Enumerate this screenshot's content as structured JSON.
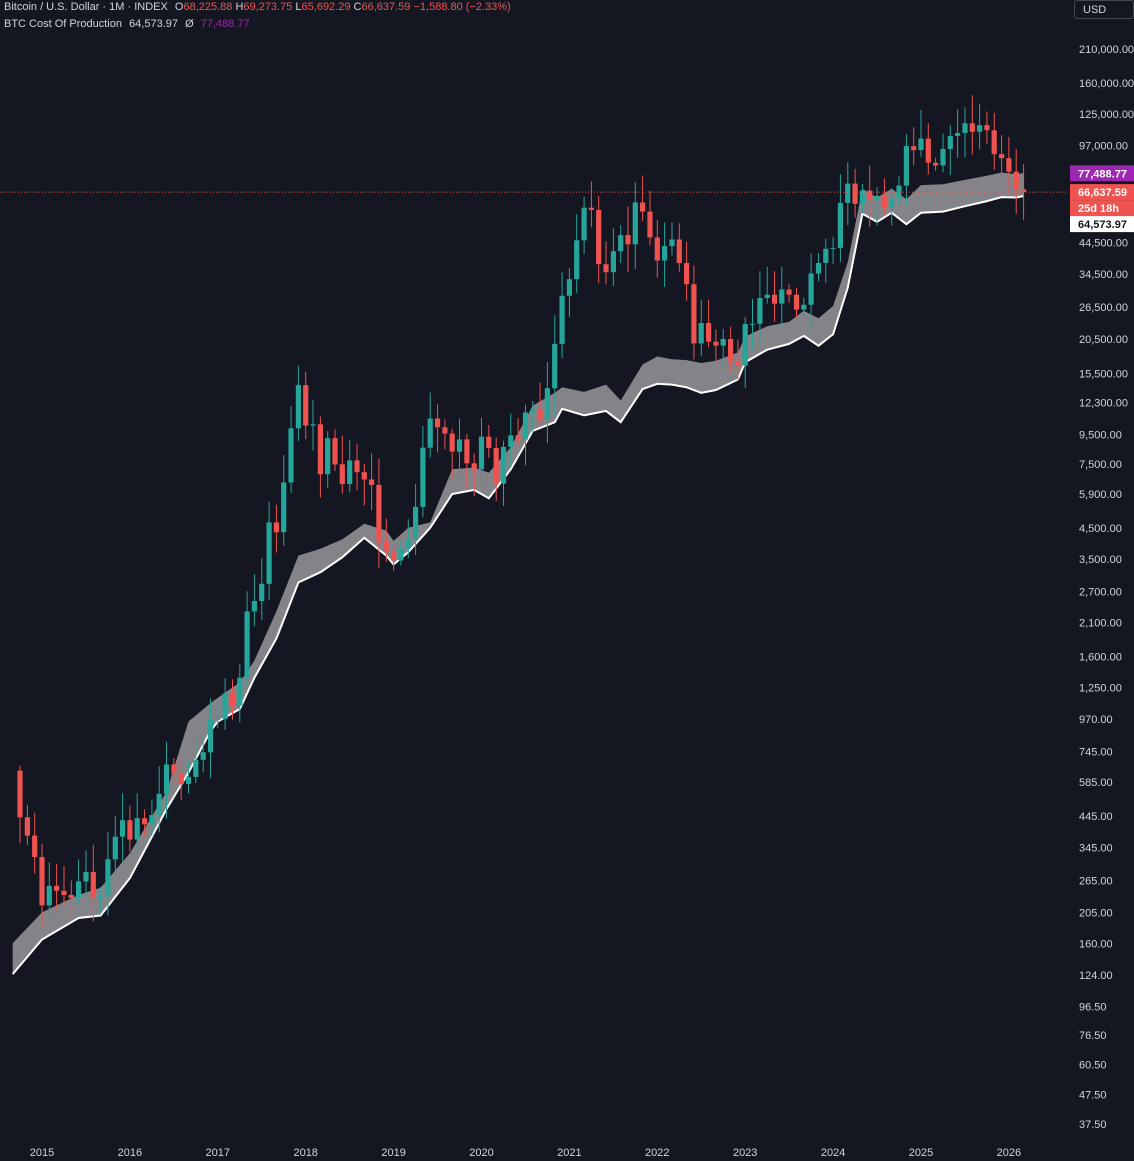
{
  "legend": {
    "title": "Bitcoin / U.S. Dollar · 1M · INDEX",
    "o_label": "O",
    "o": "68,225.88",
    "h_label": "H",
    "h": "69,273.75",
    "l_label": "L",
    "l": "65,692.29",
    "c_label": "C",
    "c": "66,637.59",
    "change": "−1,588.80 (−2.33%)",
    "indicator_name": "BTC Cost Of Production",
    "indicator_v1": "64,573.97",
    "indicator_sym": "Ø",
    "indicator_v2": "77,488.77"
  },
  "currency_button": "USD",
  "colors": {
    "background": "#141621",
    "up": "#26a69a",
    "down": "#ef5350",
    "band_fill": "#8a8a8e",
    "band_line": "#ffffff",
    "purple": "#9c27b0"
  },
  "chart_data": {
    "type": "candlestick",
    "scale": "log",
    "ylim": [
      33,
      230000
    ],
    "y_ticks": [
      "210,000.00",
      "160,000.00",
      "125,000.00",
      "97,000.00",
      "44,500.00",
      "34,500.00",
      "26,500.00",
      "20,500.00",
      "15,500.00",
      "12,300.00",
      "9,500.00",
      "7,500.00",
      "5,900.00",
      "4,500.00",
      "3,500.00",
      "2,700.00",
      "2,100.00",
      "1,600.00",
      "1,250.00",
      "970.00",
      "745.00",
      "585.00",
      "445.00",
      "345.00",
      "265.00",
      "205.00",
      "160.00",
      "124.00",
      "96.50",
      "76.50",
      "60.50",
      "47.50",
      "37.50"
    ],
    "x_ticks": [
      "2015",
      "2016",
      "2017",
      "2018",
      "2019",
      "2020",
      "2021",
      "2022",
      "2023",
      "2024",
      "2025",
      "2026"
    ],
    "price_tags": [
      {
        "label": "77,488.77",
        "value": 77488.77,
        "style": "purple"
      },
      {
        "label": "66,637.59",
        "value": 66637.59,
        "style": "red"
      },
      {
        "label": "25d 18h",
        "value": 66637.59,
        "style": "red-sub"
      },
      {
        "label": "64,573.97",
        "value": 64573.97,
        "style": "white"
      }
    ],
    "current_price": 66637.59,
    "anchors": [
      [
        "2014-09",
        640
      ],
      [
        "2014-10",
        440
      ],
      [
        "2014-11",
        380
      ],
      [
        "2014-12",
        320
      ],
      [
        "2015-01",
        217
      ],
      [
        "2015-02",
        254
      ],
      [
        "2015-03",
        244
      ],
      [
        "2015-04",
        236
      ],
      [
        "2015-05",
        230
      ],
      [
        "2015-06",
        263
      ],
      [
        "2015-07",
        284
      ],
      [
        "2015-08",
        230
      ],
      [
        "2015-09",
        236
      ],
      [
        "2015-10",
        314
      ],
      [
        "2015-11",
        377
      ],
      [
        "2015-12",
        430
      ],
      [
        "2016-01",
        368
      ],
      [
        "2016-02",
        437
      ],
      [
        "2016-03",
        416
      ],
      [
        "2016-04",
        448
      ],
      [
        "2016-05",
        531
      ],
      [
        "2016-06",
        673
      ],
      [
        "2016-07",
        624
      ],
      [
        "2016-08",
        575
      ],
      [
        "2016-09",
        609
      ],
      [
        "2016-10",
        698
      ],
      [
        "2016-11",
        742
      ],
      [
        "2016-12",
        963
      ],
      [
        "2017-01",
        970
      ],
      [
        "2017-02",
        1190
      ],
      [
        "2017-03",
        1080
      ],
      [
        "2017-04",
        1350
      ],
      [
        "2017-05",
        2300
      ],
      [
        "2017-06",
        2500
      ],
      [
        "2017-07",
        2870
      ],
      [
        "2017-08",
        4700
      ],
      [
        "2017-09",
        4340
      ],
      [
        "2017-10",
        6470
      ],
      [
        "2017-11",
        10000
      ],
      [
        "2017-12",
        14150
      ],
      [
        "2018-01",
        10220
      ],
      [
        "2018-02",
        10330
      ],
      [
        "2018-03",
        6920
      ],
      [
        "2018-04",
        9240
      ],
      [
        "2018-05",
        7490
      ],
      [
        "2018-06",
        6390
      ],
      [
        "2018-07",
        7730
      ],
      [
        "2018-08",
        7030
      ],
      [
        "2018-09",
        6630
      ],
      [
        "2018-10",
        6350
      ],
      [
        "2018-11",
        4010
      ],
      [
        "2018-12",
        3740
      ],
      [
        "2019-01",
        3460
      ],
      [
        "2019-02",
        3820
      ],
      [
        "2019-03",
        4100
      ],
      [
        "2019-04",
        5320
      ],
      [
        "2019-05",
        8560
      ],
      [
        "2019-06",
        10820
      ],
      [
        "2019-07",
        10080
      ],
      [
        "2019-08",
        9590
      ],
      [
        "2019-09",
        8290
      ],
      [
        "2019-10",
        9150
      ],
      [
        "2019-11",
        7550
      ],
      [
        "2019-12",
        7190
      ],
      [
        "2020-01",
        9350
      ],
      [
        "2020-02",
        8540
      ],
      [
        "2020-03",
        6410
      ],
      [
        "2020-04",
        8620
      ],
      [
        "2020-05",
        9450
      ],
      [
        "2020-06",
        9140
      ],
      [
        "2020-07",
        11350
      ],
      [
        "2020-08",
        11660
      ],
      [
        "2020-09",
        10780
      ],
      [
        "2020-10",
        13800
      ],
      [
        "2020-11",
        19700
      ],
      [
        "2020-12",
        28990
      ],
      [
        "2021-01",
        33110
      ],
      [
        "2021-02",
        45240
      ],
      [
        "2021-03",
        58800
      ],
      [
        "2021-04",
        57750
      ],
      [
        "2021-05",
        37330
      ],
      [
        "2021-06",
        35040
      ],
      [
        "2021-07",
        41460
      ],
      [
        "2021-08",
        47170
      ],
      [
        "2021-09",
        43820
      ],
      [
        "2021-10",
        61300
      ],
      [
        "2021-11",
        57000
      ],
      [
        "2021-12",
        46300
      ],
      [
        "2022-01",
        38480
      ],
      [
        "2022-02",
        43190
      ],
      [
        "2022-03",
        45540
      ],
      [
        "2022-04",
        37710
      ],
      [
        "2022-05",
        31790
      ],
      [
        "2022-06",
        19780
      ],
      [
        "2022-07",
        23300
      ],
      [
        "2022-08",
        20050
      ],
      [
        "2022-09",
        19430
      ],
      [
        "2022-10",
        20490
      ],
      [
        "2022-11",
        17170
      ],
      [
        "2022-12",
        16550
      ],
      [
        "2023-01",
        23130
      ],
      [
        "2023-02",
        23150
      ],
      [
        "2023-03",
        28480
      ],
      [
        "2023-04",
        29250
      ],
      [
        "2023-05",
        27220
      ],
      [
        "2023-06",
        30480
      ],
      [
        "2023-07",
        29230
      ],
      [
        "2023-08",
        25940
      ],
      [
        "2023-09",
        26970
      ],
      [
        "2023-10",
        34670
      ],
      [
        "2023-11",
        37720
      ],
      [
        "2023-12",
        42280
      ],
      [
        "2024-01",
        42580
      ],
      [
        "2024-02",
        61130
      ],
      [
        "2024-03",
        71330
      ],
      [
        "2024-04",
        60670
      ],
      [
        "2024-05",
        67520
      ],
      [
        "2024-06",
        62680
      ],
      [
        "2024-07",
        64630
      ],
      [
        "2024-08",
        58970
      ],
      [
        "2024-09",
        63330
      ],
      [
        "2024-10",
        70220
      ],
      [
        "2024-11",
        96450
      ],
      [
        "2024-12",
        93430
      ],
      [
        "2025-01",
        102400
      ],
      [
        "2025-02",
        84350
      ],
      [
        "2025-03",
        82550
      ],
      [
        "2025-04",
        94200
      ],
      [
        "2025-05",
        104600
      ],
      [
        "2025-06",
        107100
      ],
      [
        "2025-07",
        115800
      ],
      [
        "2025-08",
        108200
      ],
      [
        "2025-09",
        114000
      ],
      [
        "2025-10",
        109500
      ],
      [
        "2025-11",
        90400
      ],
      [
        "2025-12",
        87500
      ],
      [
        "2026-01",
        78500
      ],
      [
        "2026-02",
        68225.88
      ],
      [
        "2026-03",
        66637.59
      ]
    ],
    "cost_of_production_lower": [
      [
        "2014-09",
        125
      ],
      [
        "2015-01",
        165
      ],
      [
        "2015-06",
        196
      ],
      [
        "2015-09",
        200
      ],
      [
        "2016-01",
        270
      ],
      [
        "2016-06",
        470
      ],
      [
        "2016-09",
        630
      ],
      [
        "2016-12",
        880
      ],
      [
        "2017-01",
        950
      ],
      [
        "2017-04",
        1050
      ],
      [
        "2017-06",
        1350
      ],
      [
        "2017-09",
        1850
      ],
      [
        "2017-12",
        2900
      ],
      [
        "2018-03",
        3150
      ],
      [
        "2018-06",
        3550
      ],
      [
        "2018-09",
        4150
      ],
      [
        "2018-12",
        3600
      ],
      [
        "2019-01",
        3350
      ],
      [
        "2019-03",
        3700
      ],
      [
        "2019-06",
        4500
      ],
      [
        "2019-09",
        5900
      ],
      [
        "2019-12",
        6100
      ],
      [
        "2020-02",
        5700
      ],
      [
        "2020-05",
        7200
      ],
      [
        "2020-08",
        9800
      ],
      [
        "2020-11",
        10500
      ],
      [
        "2020-12",
        11700
      ],
      [
        "2021-03",
        11100
      ],
      [
        "2021-06",
        11500
      ],
      [
        "2021-08",
        10500
      ],
      [
        "2021-11",
        13700
      ],
      [
        "2022-01",
        14300
      ],
      [
        "2022-03",
        14200
      ],
      [
        "2022-05",
        13900
      ],
      [
        "2022-07",
        13300
      ],
      [
        "2022-09",
        13600
      ],
      [
        "2022-12",
        14800
      ],
      [
        "2023-01",
        17000
      ],
      [
        "2023-04",
        18800
      ],
      [
        "2023-07",
        19700
      ],
      [
        "2023-09",
        21000
      ],
      [
        "2023-11",
        19400
      ],
      [
        "2024-01",
        21300
      ],
      [
        "2024-03",
        31000
      ],
      [
        "2024-05",
        56000
      ],
      [
        "2024-07",
        52500
      ],
      [
        "2024-09",
        56500
      ],
      [
        "2024-11",
        51500
      ],
      [
        "2025-01",
        56500
      ],
      [
        "2025-04",
        57000
      ],
      [
        "2025-07",
        59500
      ],
      [
        "2025-10",
        62000
      ],
      [
        "2025-12",
        64000
      ],
      [
        "2026-02",
        63800
      ],
      [
        "2026-03",
        64573.97
      ]
    ],
    "cost_of_production_upper": [
      [
        "2014-09",
        160
      ],
      [
        "2015-01",
        205
      ],
      [
        "2015-06",
        236
      ],
      [
        "2015-09",
        250
      ],
      [
        "2016-01",
        330
      ],
      [
        "2016-06",
        540
      ],
      [
        "2016-09",
        950
      ],
      [
        "2016-12",
        1100
      ],
      [
        "2017-01",
        1150
      ],
      [
        "2017-04",
        1300
      ],
      [
        "2017-06",
        1550
      ],
      [
        "2017-09",
        2300
      ],
      [
        "2017-12",
        3600
      ],
      [
        "2018-03",
        3800
      ],
      [
        "2018-06",
        4100
      ],
      [
        "2018-09",
        4650
      ],
      [
        "2018-12",
        4400
      ],
      [
        "2019-01",
        4050
      ],
      [
        "2019-03",
        4500
      ],
      [
        "2019-06",
        4700
      ],
      [
        "2019-09",
        7200
      ],
      [
        "2019-12",
        7300
      ],
      [
        "2020-02",
        7000
      ],
      [
        "2020-05",
        8600
      ],
      [
        "2020-08",
        12000
      ],
      [
        "2020-11",
        13300
      ],
      [
        "2020-12",
        13900
      ],
      [
        "2021-03",
        13400
      ],
      [
        "2021-06",
        14200
      ],
      [
        "2021-08",
        12500
      ],
      [
        "2021-11",
        16700
      ],
      [
        "2022-01",
        17800
      ],
      [
        "2022-03",
        17400
      ],
      [
        "2022-05",
        17300
      ],
      [
        "2022-07",
        16900
      ],
      [
        "2022-09",
        17200
      ],
      [
        "2022-12",
        18400
      ],
      [
        "2023-01",
        20900
      ],
      [
        "2023-04",
        22700
      ],
      [
        "2023-07",
        23500
      ],
      [
        "2023-09",
        25700
      ],
      [
        "2023-11",
        24200
      ],
      [
        "2024-01",
        26700
      ],
      [
        "2024-03",
        38000
      ],
      [
        "2024-05",
        68500
      ],
      [
        "2024-07",
        63800
      ],
      [
        "2024-09",
        68500
      ],
      [
        "2024-11",
        63000
      ],
      [
        "2025-01",
        70500
      ],
      [
        "2025-04",
        71000
      ],
      [
        "2025-07",
        73500
      ],
      [
        "2025-10",
        76000
      ],
      [
        "2025-12",
        78000
      ],
      [
        "2026-02",
        77000
      ],
      [
        "2026-03",
        77488.77
      ]
    ]
  }
}
